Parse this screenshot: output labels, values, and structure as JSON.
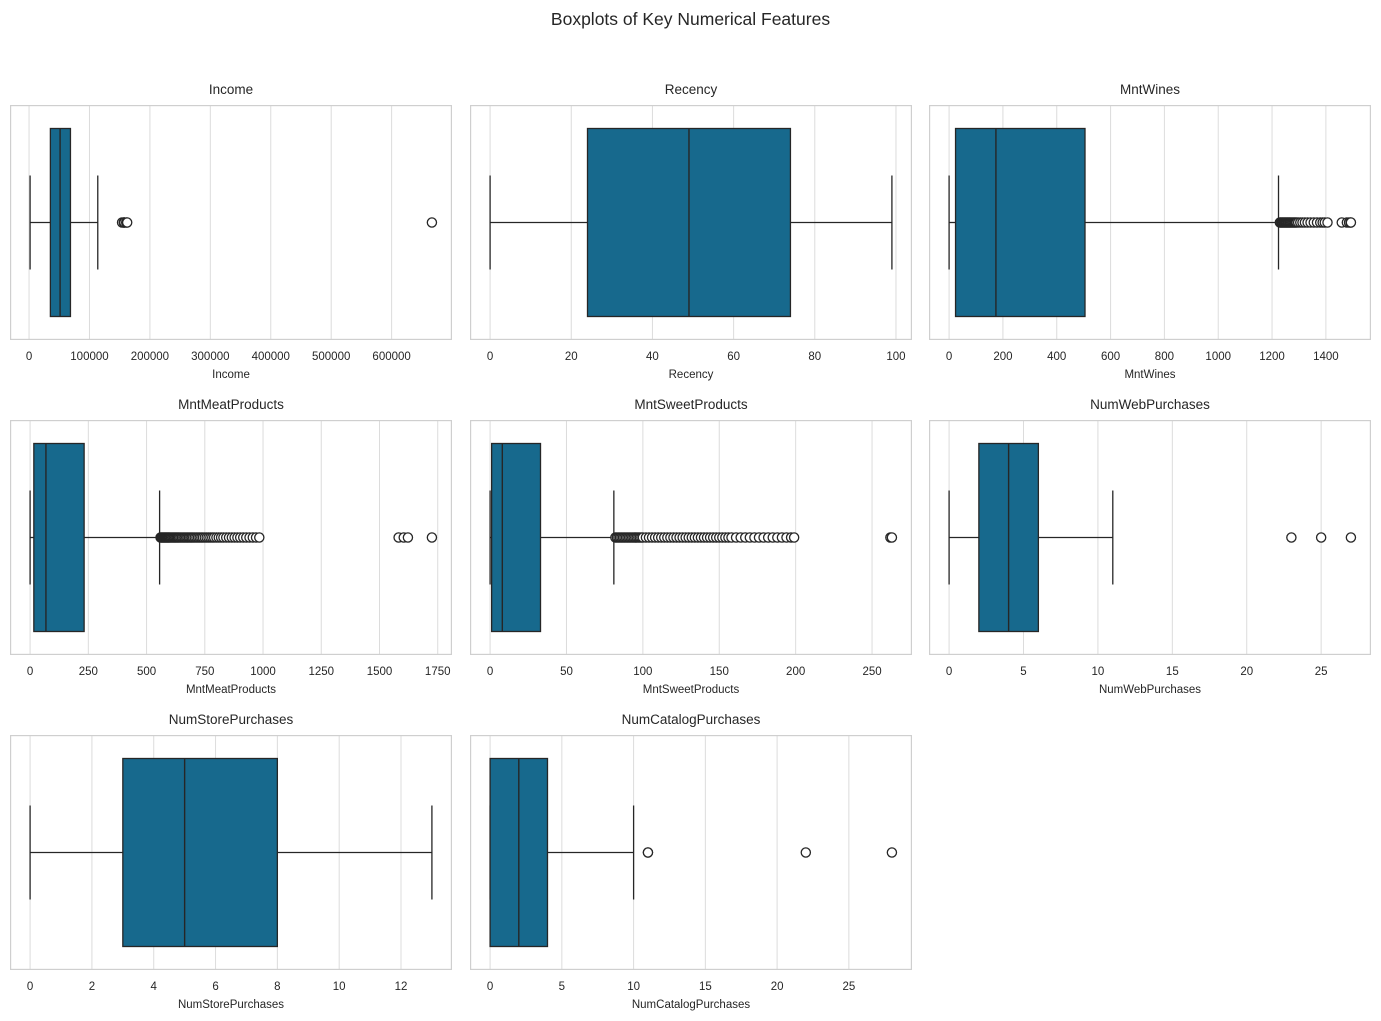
{
  "suptitle": "Boxplots of Key Numerical Features",
  "colors": {
    "box_fill": "#17698D",
    "line": "#262626",
    "grid": "#dcdcdc",
    "spine": "#cfcfcf",
    "text": "#262626",
    "background": "#ffffff"
  },
  "chart_data": [
    {
      "type": "box",
      "orientation": "horizontal",
      "grid": true,
      "title": "Income",
      "xlabel": "Income",
      "xlim": [
        -31517,
        699913
      ],
      "tick_values": [
        0,
        100000,
        200000,
        300000,
        400000,
        500000,
        600000
      ],
      "tick_labels": [
        "0",
        "100000",
        "200000",
        "300000",
        "400000",
        "500000",
        "600000"
      ],
      "whisker_low": 1730,
      "q1": 35303,
      "median": 51381,
      "q3": 68522,
      "whisker_high": 113734,
      "outliers": [
        153924,
        156924,
        157146,
        157733,
        160803,
        162397,
        666666
      ]
    },
    {
      "type": "box",
      "orientation": "horizontal",
      "grid": true,
      "title": "Recency",
      "xlabel": "Recency",
      "xlim": [
        -4.95,
        103.95
      ],
      "tick_values": [
        0,
        20,
        40,
        60,
        80,
        100
      ],
      "tick_labels": [
        "0",
        "20",
        "40",
        "60",
        "80",
        "100"
      ],
      "whisker_low": 0,
      "q1": 24,
      "median": 49,
      "q3": 74,
      "whisker_high": 99,
      "outliers": []
    },
    {
      "type": "box",
      "orientation": "horizontal",
      "grid": true,
      "title": "MntWines",
      "xlabel": "MntWines",
      "xlim": [
        -74.65,
        1567.65
      ],
      "tick_values": [
        0,
        200,
        400,
        600,
        800,
        1000,
        1200,
        1400
      ],
      "tick_labels": [
        "0",
        "200",
        "400",
        "600",
        "800",
        "1000",
        "1200",
        "1400"
      ],
      "whisker_low": 0,
      "q1": 24,
      "median": 174,
      "q3": 505,
      "whisker_high": 1224,
      "outliers": [
        1229,
        1232,
        1236,
        1239,
        1243,
        1246,
        1250,
        1253,
        1257,
        1260,
        1264,
        1267,
        1271,
        1275,
        1279,
        1283,
        1287,
        1291,
        1297,
        1305,
        1313,
        1322,
        1332,
        1343,
        1355,
        1367,
        1379,
        1388,
        1396,
        1406,
        1459,
        1478,
        1486,
        1492,
        1493
      ]
    },
    {
      "type": "box",
      "orientation": "horizontal",
      "grid": true,
      "title": "MntMeatProducts",
      "xlabel": "MntMeatProducts",
      "xlim": [
        -86.25,
        1811.25
      ],
      "tick_values": [
        0,
        250,
        500,
        750,
        1000,
        1250,
        1500,
        1750
      ],
      "tick_labels": [
        "0",
        "250",
        "500",
        "750",
        "1000",
        "1250",
        "1500",
        "1750"
      ],
      "whisker_low": 0,
      "q1": 16,
      "median": 68,
      "q3": 232,
      "whisker_high": 556,
      "outliers": [
        560,
        564,
        568,
        572,
        576,
        580,
        584,
        588,
        592,
        596,
        600,
        605,
        610,
        615,
        620,
        625,
        630,
        635,
        640,
        646,
        652,
        658,
        664,
        670,
        676,
        682,
        688,
        694,
        700,
        707,
        714,
        721,
        728,
        735,
        742,
        750,
        758,
        766,
        774,
        782,
        790,
        800,
        810,
        820,
        830,
        842,
        854,
        866,
        878,
        890,
        902,
        915,
        928,
        942,
        956,
        970,
        984,
        1582,
        1604,
        1622,
        1725
      ]
    },
    {
      "type": "box",
      "orientation": "horizontal",
      "grid": true,
      "title": "MntSweetProducts",
      "xlabel": "MntSweetProducts",
      "xlim": [
        -13.15,
        276.15
      ],
      "tick_values": [
        0,
        50,
        100,
        150,
        200,
        250
      ],
      "tick_labels": [
        "0",
        "50",
        "100",
        "150",
        "200",
        "250"
      ],
      "whisker_low": 0,
      "q1": 1,
      "median": 8,
      "q3": 33,
      "whisker_high": 81,
      "outliers": [
        82,
        83,
        84,
        85,
        86,
        87,
        88,
        89,
        90,
        91,
        92,
        93,
        94,
        95,
        96,
        97,
        98,
        99,
        100,
        102,
        104,
        106,
        108,
        110,
        112,
        114,
        116,
        118,
        120,
        122,
        124,
        126,
        128,
        130,
        132,
        134,
        136,
        138,
        140,
        142,
        144,
        146,
        148,
        150,
        152,
        154,
        156,
        158,
        161,
        164,
        167,
        170,
        173,
        176,
        179,
        182,
        185,
        188,
        191,
        194,
        197,
        199,
        262,
        263
      ]
    },
    {
      "type": "box",
      "orientation": "horizontal",
      "grid": true,
      "title": "NumWebPurchases",
      "xlabel": "NumWebPurchases",
      "xlim": [
        -1.35,
        28.35
      ],
      "tick_values": [
        0,
        5,
        10,
        15,
        20,
        25
      ],
      "tick_labels": [
        "0",
        "5",
        "10",
        "15",
        "20",
        "25"
      ],
      "whisker_low": 0,
      "q1": 2,
      "median": 4,
      "q3": 6,
      "whisker_high": 11,
      "outliers": [
        23,
        25,
        27
      ]
    },
    {
      "type": "box",
      "orientation": "horizontal",
      "grid": true,
      "title": "NumStorePurchases",
      "xlabel": "NumStorePurchases",
      "xlim": [
        -0.65,
        13.65
      ],
      "tick_values": [
        0,
        2,
        4,
        6,
        8,
        10,
        12
      ],
      "tick_labels": [
        "0",
        "2",
        "4",
        "6",
        "8",
        "10",
        "12"
      ],
      "whisker_low": 0,
      "q1": 3,
      "median": 5,
      "q3": 8,
      "whisker_high": 13,
      "outliers": []
    },
    {
      "type": "box",
      "orientation": "horizontal",
      "grid": true,
      "title": "NumCatalogPurchases",
      "xlabel": "NumCatalogPurchases",
      "xlim": [
        -1.4,
        29.4
      ],
      "tick_values": [
        0,
        5,
        10,
        15,
        20,
        25
      ],
      "tick_labels": [
        "0",
        "5",
        "10",
        "15",
        "20",
        "25"
      ],
      "whisker_low": 0,
      "q1": 0,
      "median": 2,
      "q3": 4,
      "whisker_high": 10,
      "outliers": [
        11,
        11,
        22,
        28
      ]
    }
  ]
}
